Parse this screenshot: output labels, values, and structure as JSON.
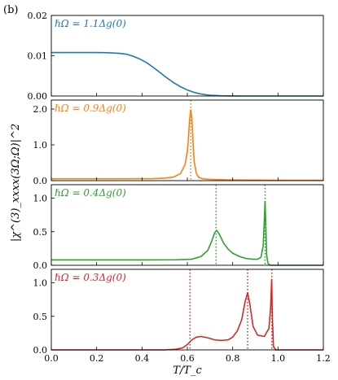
{
  "panel_label": "(b)",
  "chart_data": {
    "type": "line",
    "xlabel": "T/T_c",
    "ylabel": "|χ^(3)_xxxx(3Ω;Ω)|^2",
    "xlim": [
      0.0,
      1.2
    ],
    "xticks": [
      0.0,
      0.2,
      0.4,
      0.6,
      0.8,
      1.0,
      1.2
    ],
    "xtick_labels": [
      "0.0",
      "0.2",
      "0.4",
      "0.6",
      "0.8",
      "1.0",
      "1.2"
    ],
    "grid": false,
    "panels": [
      {
        "annotation": "ℏΩ = 1.1Δg(0)",
        "color": "#1f77b4",
        "ylim": [
          0,
          0.02
        ],
        "yticks": [
          0.0,
          0.01,
          0.02
        ],
        "ytick_labels": [
          "0.00",
          "0.01",
          "0.02"
        ],
        "vlines": [],
        "points": [
          [
            0.0,
            0.0108
          ],
          [
            0.1,
            0.0108
          ],
          [
            0.2,
            0.0108
          ],
          [
            0.25,
            0.01075
          ],
          [
            0.3,
            0.0106
          ],
          [
            0.33,
            0.0104
          ],
          [
            0.36,
            0.0099
          ],
          [
            0.39,
            0.0092
          ],
          [
            0.42,
            0.0083
          ],
          [
            0.45,
            0.0071
          ],
          [
            0.48,
            0.0058
          ],
          [
            0.51,
            0.0045
          ],
          [
            0.54,
            0.0033
          ],
          [
            0.57,
            0.0023
          ],
          [
            0.6,
            0.0015
          ],
          [
            0.63,
            0.0009
          ],
          [
            0.66,
            0.0005
          ],
          [
            0.7,
            0.0002
          ],
          [
            0.75,
            6e-05
          ],
          [
            0.8,
            1e-05
          ],
          [
            0.85,
            0.0
          ],
          [
            1.2,
            0.0
          ]
        ]
      },
      {
        "annotation": "ℏΩ = 0.9Δg(0)",
        "color": "#ff7f0e",
        "ylim": [
          0,
          2.25
        ],
        "yticks": [
          0.0,
          1.0,
          2.0
        ],
        "ytick_labels": [
          "0.0",
          "1.0",
          "2.0"
        ],
        "vlines": [
          0.615
        ],
        "points": [
          [
            0.0,
            0.05
          ],
          [
            0.3,
            0.05
          ],
          [
            0.45,
            0.055
          ],
          [
            0.5,
            0.07
          ],
          [
            0.54,
            0.1
          ],
          [
            0.57,
            0.2
          ],
          [
            0.59,
            0.45
          ],
          [
            0.6,
            0.8
          ],
          [
            0.605,
            1.2
          ],
          [
            0.61,
            1.7
          ],
          [
            0.615,
            1.98
          ],
          [
            0.62,
            1.75
          ],
          [
            0.625,
            1.1
          ],
          [
            0.63,
            0.55
          ],
          [
            0.64,
            0.2
          ],
          [
            0.65,
            0.09
          ],
          [
            0.67,
            0.05
          ],
          [
            0.7,
            0.035
          ],
          [
            0.8,
            0.02
          ],
          [
            0.9,
            0.015
          ],
          [
            1.0,
            0.01
          ],
          [
            1.2,
            0.01
          ]
        ]
      },
      {
        "annotation": "ℏΩ = 0.4Δg(0)",
        "color": "#2ca02c",
        "ylim": [
          0,
          1.2
        ],
        "yticks": [
          0.0,
          0.5,
          1.0
        ],
        "ytick_labels": [
          "0.0",
          "0.5",
          "1.0"
        ],
        "vlines": [
          0.727,
          0.943
        ],
        "points": [
          [
            0.0,
            0.08
          ],
          [
            0.4,
            0.08
          ],
          [
            0.55,
            0.082
          ],
          [
            0.62,
            0.09
          ],
          [
            0.66,
            0.13
          ],
          [
            0.69,
            0.22
          ],
          [
            0.71,
            0.38
          ],
          [
            0.72,
            0.48
          ],
          [
            0.73,
            0.52
          ],
          [
            0.74,
            0.47
          ],
          [
            0.76,
            0.33
          ],
          [
            0.78,
            0.24
          ],
          [
            0.8,
            0.18
          ],
          [
            0.83,
            0.13
          ],
          [
            0.86,
            0.1
          ],
          [
            0.89,
            0.09
          ],
          [
            0.91,
            0.09
          ],
          [
            0.925,
            0.12
          ],
          [
            0.935,
            0.3
          ],
          [
            0.94,
            0.7
          ],
          [
            0.943,
            0.95
          ],
          [
            0.946,
            0.6
          ],
          [
            0.95,
            0.15
          ],
          [
            0.955,
            0.04
          ],
          [
            0.96,
            0.01
          ],
          [
            0.97,
            0.0
          ],
          [
            1.2,
            0.0
          ]
        ]
      },
      {
        "annotation": "ℏΩ = 0.3Δg(0)",
        "color": "#d62728",
        "ylim": [
          0,
          1.2
        ],
        "yticks": [
          0.0,
          0.5,
          1.0
        ],
        "ytick_labels": [
          "0.0",
          "0.5",
          "1.0"
        ],
        "vlines": [
          0.612,
          0.866,
          0.973
        ],
        "points": [
          [
            0.0,
            0.0
          ],
          [
            0.5,
            0.0
          ],
          [
            0.55,
            0.01
          ],
          [
            0.58,
            0.03
          ],
          [
            0.6,
            0.08
          ],
          [
            0.62,
            0.15
          ],
          [
            0.64,
            0.19
          ],
          [
            0.66,
            0.2
          ],
          [
            0.69,
            0.18
          ],
          [
            0.72,
            0.15
          ],
          [
            0.75,
            0.14
          ],
          [
            0.78,
            0.15
          ],
          [
            0.8,
            0.19
          ],
          [
            0.82,
            0.28
          ],
          [
            0.84,
            0.45
          ],
          [
            0.855,
            0.72
          ],
          [
            0.866,
            0.85
          ],
          [
            0.875,
            0.7
          ],
          [
            0.89,
            0.35
          ],
          [
            0.91,
            0.22
          ],
          [
            0.94,
            0.2
          ],
          [
            0.96,
            0.32
          ],
          [
            0.967,
            0.6
          ],
          [
            0.972,
            1.05
          ],
          [
            0.975,
            0.5
          ],
          [
            0.98,
            0.05
          ],
          [
            0.99,
            0.0
          ],
          [
            1.2,
            0.0
          ]
        ]
      }
    ]
  }
}
